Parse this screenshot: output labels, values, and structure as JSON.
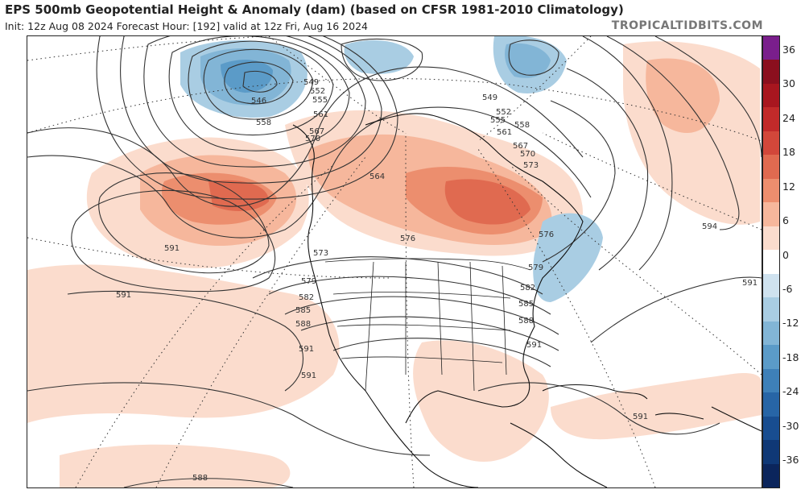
{
  "header": {
    "title": "EPS 500mb Geopotential Height & Anomaly (dam) (based on CFSR 1981-2010 Climatology)",
    "subtitle": "Init: 12z Aug 08 2024   Forecast Hour: [192]   valid at 12z Fri, Aug 16 2024",
    "brand": "TROPICALTIDBITS.COM"
  },
  "colorbar": {
    "labels": [
      "36",
      "30",
      "24",
      "18",
      "12",
      "6",
      "0",
      "-6",
      "-12",
      "-18",
      "-24",
      "-30",
      "-36"
    ],
    "colors": [
      "#7a1e8c",
      "#8b0f1e",
      "#a8161f",
      "#c12a2a",
      "#d2473a",
      "#e06a50",
      "#ec8e6e",
      "#f6b79c",
      "#fbdccd",
      "#ffffff",
      "#cfe2ef",
      "#a9cde3",
      "#82b5d6",
      "#5b9bc8",
      "#3e80b8",
      "#2765a6",
      "#184d90",
      "#0f3876",
      "#0b255c"
    ]
  },
  "map": {
    "contour_labels": [
      "546",
      "549",
      "552",
      "555",
      "558",
      "561",
      "567",
      "570",
      "564",
      "573",
      "576",
      "579",
      "582",
      "585",
      "588",
      "591",
      "594",
      "549",
      "552",
      "555",
      "558",
      "561",
      "567",
      "570",
      "573",
      "576",
      "579",
      "582",
      "585",
      "588",
      "591",
      "591",
      "591",
      "591",
      "591",
      "588",
      "591",
      "546"
    ]
  }
}
